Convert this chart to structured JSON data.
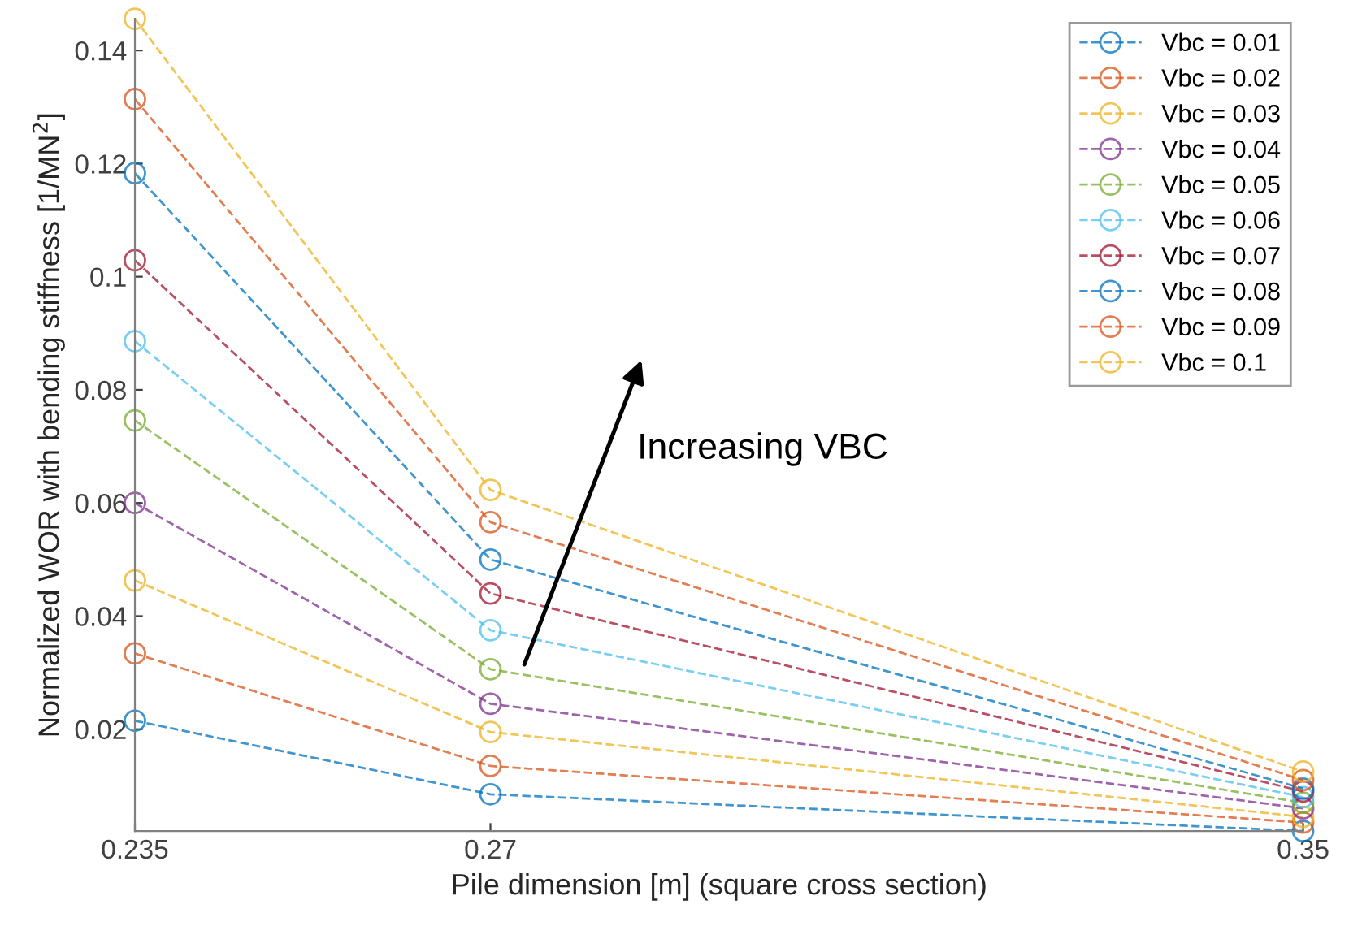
{
  "chart_data": {
    "type": "line",
    "xlabel": "Pile dimension [m] (square cross section)",
    "ylabel": "Normalized WOR with bending stiffness [1/MN$^{2}$]",
    "x": [
      0.235,
      0.27,
      0.35
    ],
    "xlim": [
      0.235,
      0.35
    ],
    "xticks": [
      0.235,
      0.27,
      0.35
    ],
    "ylim": [
      0.002,
      0.1456
    ],
    "yticks": [
      0.02,
      0.04,
      0.06,
      0.08,
      0.1,
      0.12,
      0.14
    ],
    "marker": "circle",
    "line_style": "dashed",
    "grid": false,
    "legend": "top right",
    "annotations": [
      "Increasing VBC"
    ],
    "series": [
      {
        "name": "Vbc = 0.01",
        "color": "#0072bd",
        "values": [
          0.0215,
          0.0085,
          0.002
        ]
      },
      {
        "name": "Vbc = 0.02",
        "color": "#d95319",
        "values": [
          0.0334,
          0.0135,
          0.0035
        ]
      },
      {
        "name": "Vbc = 0.03",
        "color": "#edb120",
        "values": [
          0.0463,
          0.0195,
          0.0045
        ]
      },
      {
        "name": "Vbc = 0.04",
        "color": "#7e2f8e",
        "values": [
          0.06,
          0.0245,
          0.006
        ]
      },
      {
        "name": "Vbc = 0.05",
        "color": "#77ac30",
        "values": [
          0.0746,
          0.0306,
          0.007
        ]
      },
      {
        "name": "Vbc = 0.06",
        "color": "#4dbeee",
        "values": [
          0.0886,
          0.0375,
          0.008
        ]
      },
      {
        "name": "Vbc = 0.07",
        "color": "#a2142f",
        "values": [
          0.1029,
          0.044,
          0.009
        ]
      },
      {
        "name": "Vbc = 0.08",
        "color": "#0072bd",
        "values": [
          0.1183,
          0.05,
          0.0095
        ]
      },
      {
        "name": "Vbc = 0.09",
        "color": "#d95319",
        "values": [
          0.1314,
          0.0566,
          0.011
        ]
      },
      {
        "name": "Vbc = 0.1",
        "color": "#edb120",
        "values": [
          0.1456,
          0.0623,
          0.0125
        ]
      }
    ]
  }
}
